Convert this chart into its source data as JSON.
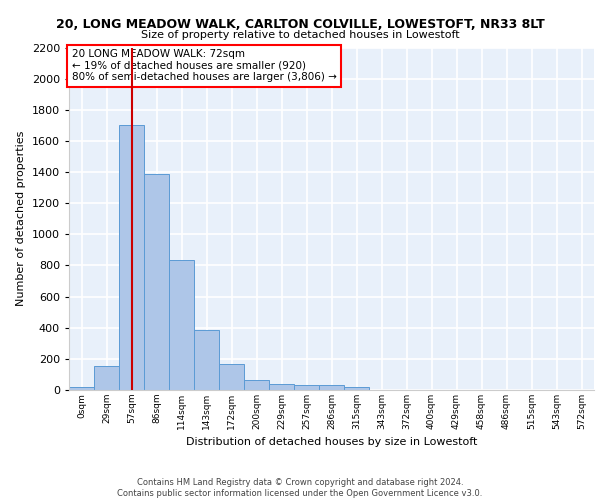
{
  "title_line1": "20, LONG MEADOW WALK, CARLTON COLVILLE, LOWESTOFT, NR33 8LT",
  "title_line2": "Size of property relative to detached houses in Lowestoft",
  "xlabel": "Distribution of detached houses by size in Lowestoft",
  "ylabel": "Number of detached properties",
  "bin_labels": [
    "0sqm",
    "29sqm",
    "57sqm",
    "86sqm",
    "114sqm",
    "143sqm",
    "172sqm",
    "200sqm",
    "229sqm",
    "257sqm",
    "286sqm",
    "315sqm",
    "343sqm",
    "372sqm",
    "400sqm",
    "429sqm",
    "458sqm",
    "486sqm",
    "515sqm",
    "543sqm",
    "572sqm"
  ],
  "bar_values": [
    20,
    155,
    1700,
    1390,
    835,
    385,
    165,
    65,
    40,
    30,
    30,
    20,
    0,
    0,
    0,
    0,
    0,
    0,
    0,
    0,
    0
  ],
  "bar_color": "#aec6e8",
  "bar_edge_color": "#5b9bd5",
  "vline_x_bin": 2,
  "vline_color": "#cc0000",
  "annotation_text": "20 LONG MEADOW WALK: 72sqm\n← 19% of detached houses are smaller (920)\n80% of semi-detached houses are larger (3,806) →",
  "ylim": [
    0,
    2200
  ],
  "yticks": [
    0,
    200,
    400,
    600,
    800,
    1000,
    1200,
    1400,
    1600,
    1800,
    2000,
    2200
  ],
  "background_color": "#e8f0fa",
  "grid_color": "#ffffff",
  "footer_text": "Contains HM Land Registry data © Crown copyright and database right 2024.\nContains public sector information licensed under the Open Government Licence v3.0."
}
